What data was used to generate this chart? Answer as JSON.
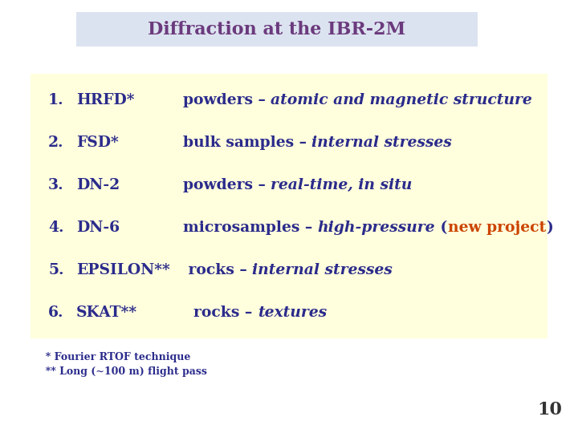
{
  "title": "Diffraction at the IBR-2M",
  "title_color": "#6B3A7D",
  "title_bg_color": "#dce3f0",
  "bg_color": "#ffffff",
  "content_bg_color": "#ffffdd",
  "dark_blue": "#2B2B8C",
  "orange_red": "#CC4400",
  "footnote_color": "#2B2B8C",
  "page_number": "10",
  "items": [
    {
      "num": "1.",
      "instrument": "HRFD*",
      "plain": "powders – ",
      "italic": "atomic and magnetic structure",
      "extra": null
    },
    {
      "num": "2.",
      "instrument": "FSD*",
      "plain": "bulk samples – ",
      "italic": "internal stresses",
      "extra": null
    },
    {
      "num": "3.",
      "instrument": "DN-2",
      "plain": "powders – ",
      "italic": "real-time, in situ",
      "extra": null
    },
    {
      "num": "4.",
      "instrument": "DN-6",
      "plain": "microsamples – ",
      "italic": "high-pressure",
      "extra": [
        "(",
        "new project",
        ")"
      ]
    },
    {
      "num": "5.",
      "instrument": "EPSILON**",
      "plain": " rocks – ",
      "italic": "internal stresses",
      "extra": null
    },
    {
      "num": "6.",
      "instrument": "SKAT**",
      "plain": "  rocks – ",
      "italic": "textures",
      "extra": null
    }
  ],
  "footnote1": "  * Fourier RTOF technique",
  "footnote2": "  ** Long (~100 m) flight pass"
}
